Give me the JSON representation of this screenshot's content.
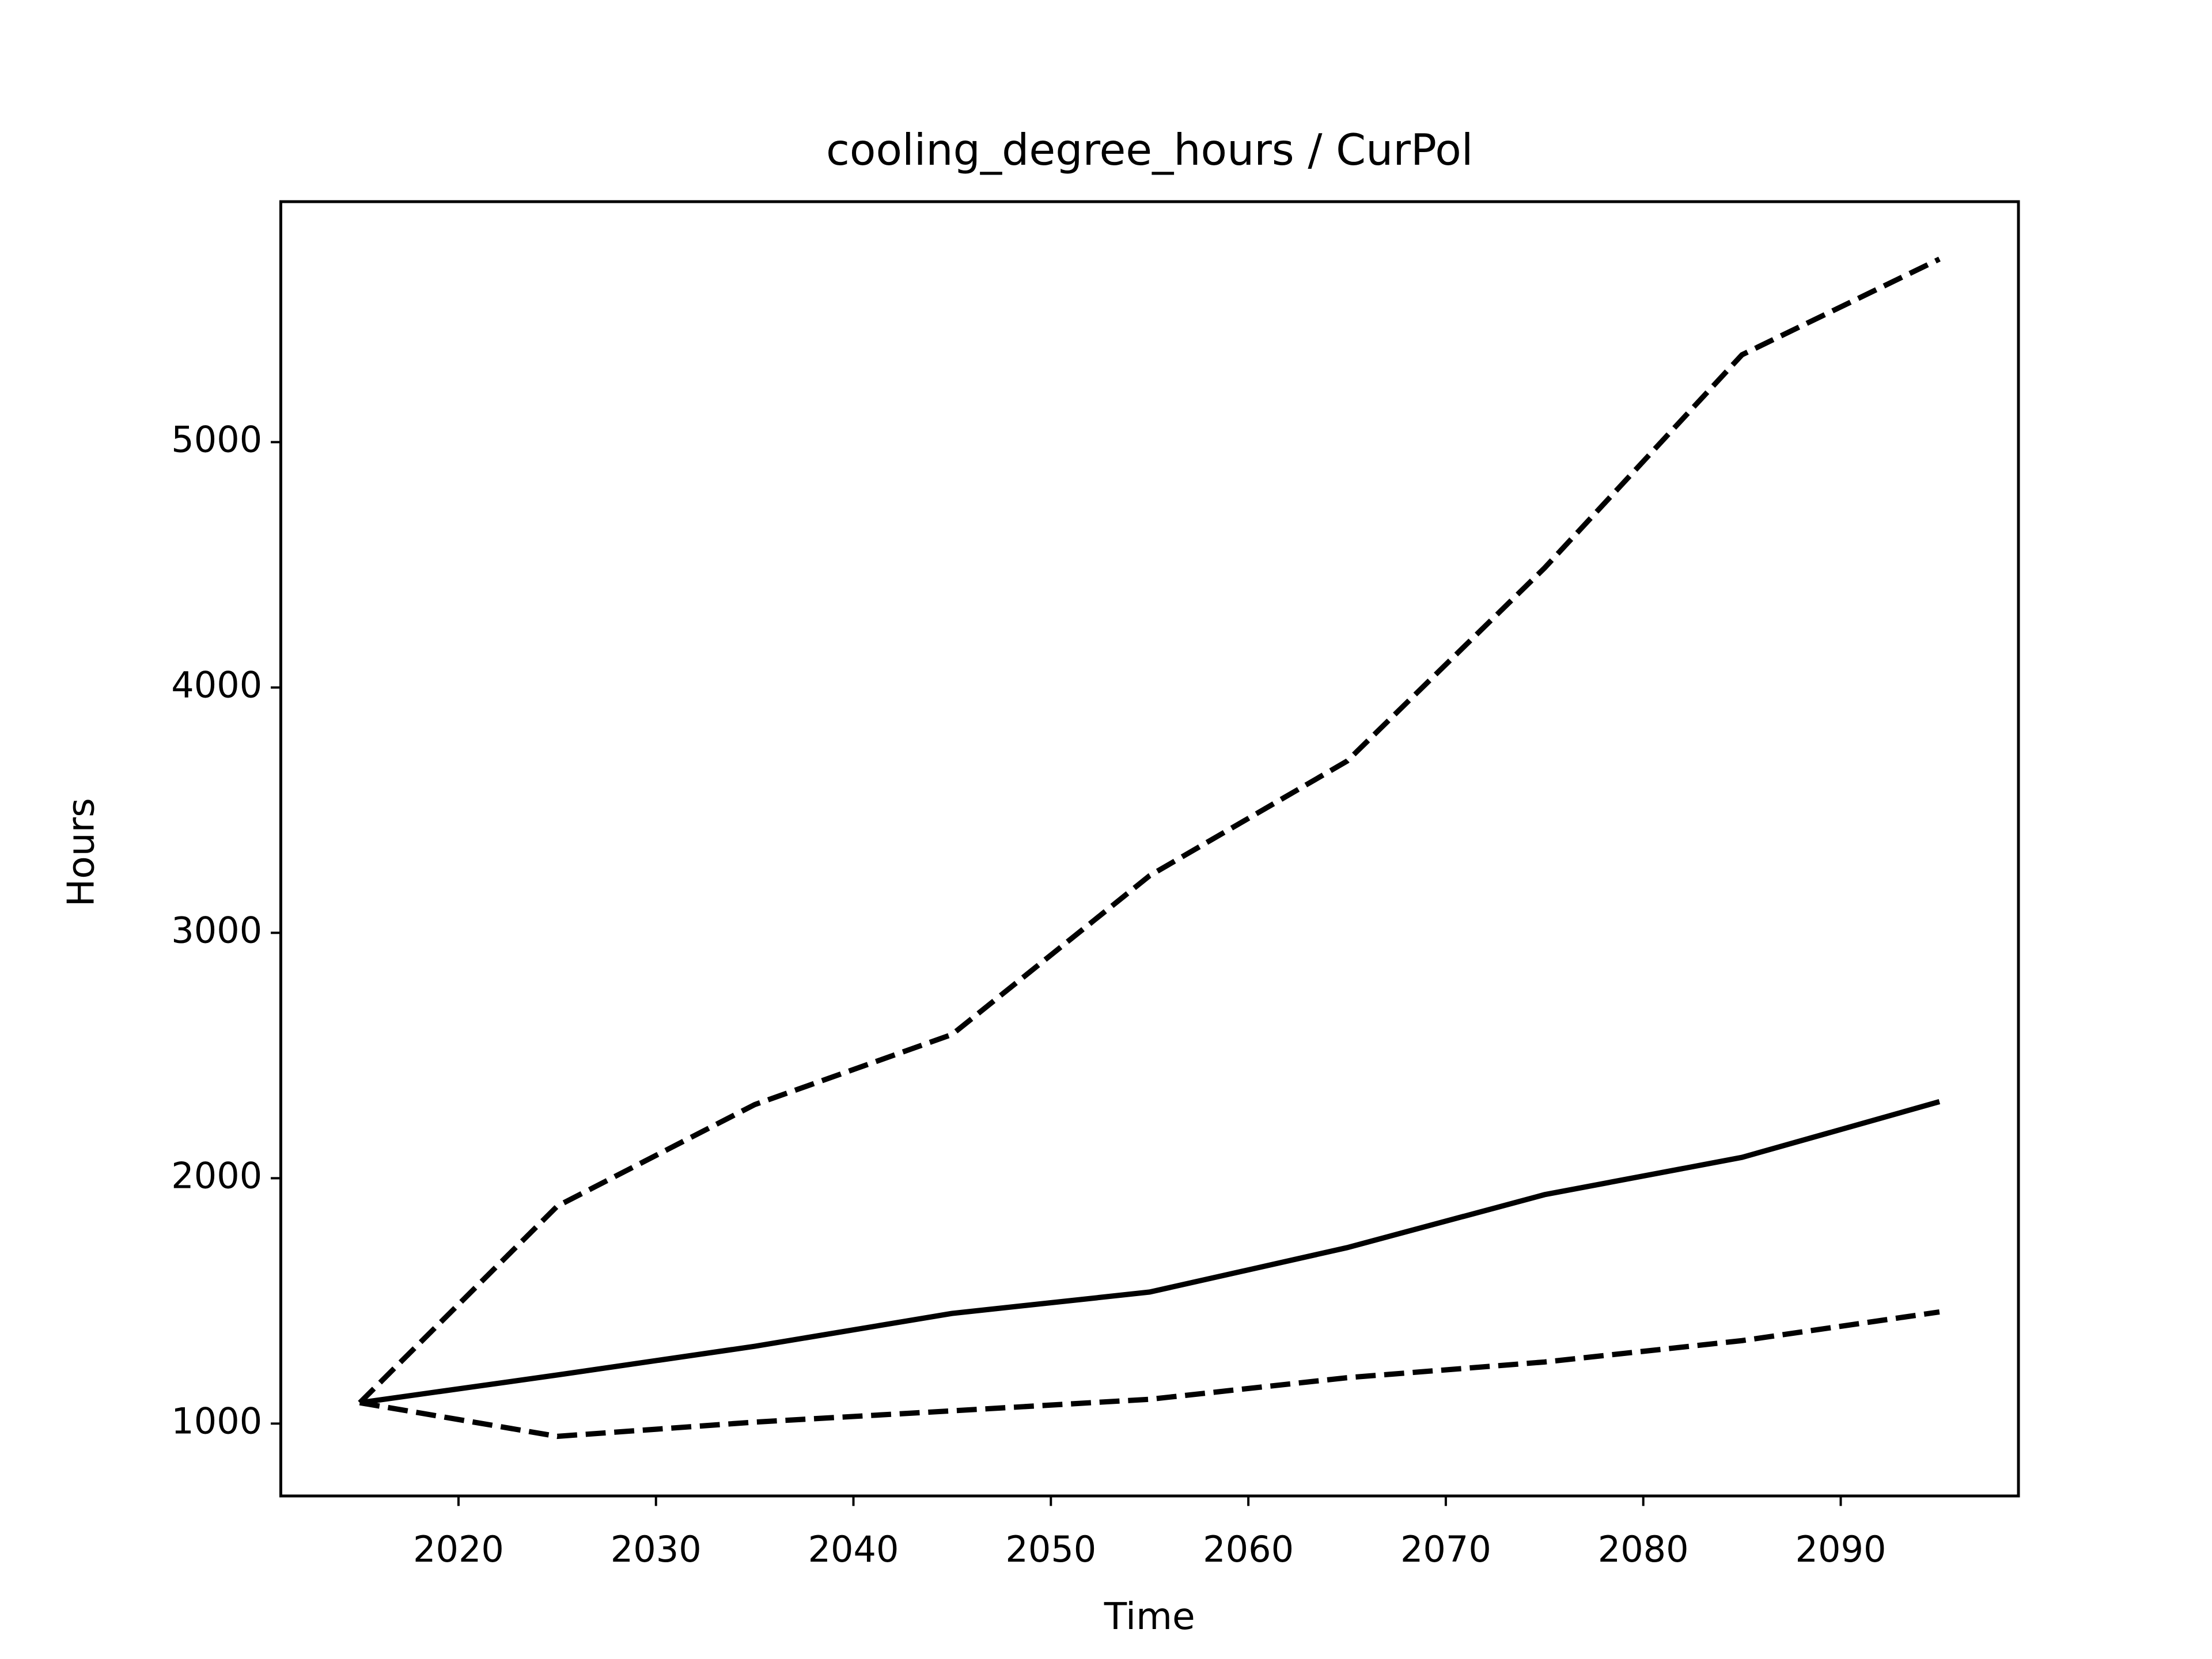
{
  "chart_data": {
    "type": "line",
    "title": "cooling_degree_hours / CurPol",
    "xlabel": "Time",
    "ylabel": "Hours",
    "x": [
      2015,
      2025,
      2035,
      2045,
      2055,
      2065,
      2075,
      2085,
      2095
    ],
    "series": [
      {
        "color": "#000000",
        "linestyle": "solid",
        "values": [
          1085,
          1198,
          1315,
          1449,
          1536,
          1717,
          1933,
          2085,
          2312
        ]
      },
      {
        "color": "#000000",
        "linestyle": "dashed",
        "values": [
          1085,
          1886,
          2300,
          2586,
          3233,
          3700,
          4487,
          5356,
          5746
        ]
      },
      {
        "color": "#000000",
        "linestyle": "dashed",
        "values": [
          1085,
          948,
          1006,
          1052,
          1099,
          1187,
          1251,
          1338,
          1455
        ]
      }
    ],
    "xlim": [
      2011,
      2099
    ],
    "xticks": [
      2020,
      2030,
      2040,
      2050,
      2060,
      2070,
      2080,
      2090
    ],
    "ylim": [
      705,
      5980
    ],
    "yticks": [
      1000,
      2000,
      3000,
      4000,
      5000
    ],
    "grid": false
  }
}
